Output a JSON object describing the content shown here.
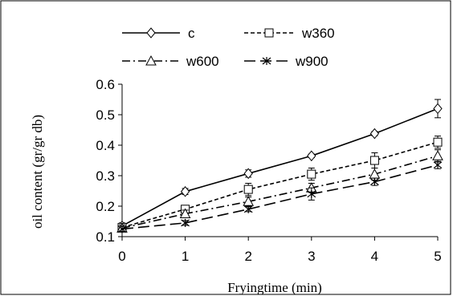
{
  "chart_data": {
    "type": "line",
    "title": "",
    "xlabel": "Fryingtime (min)",
    "ylabel": "oil content (gr/gr db)",
    "x": [
      0,
      1,
      2,
      3,
      4,
      5
    ],
    "xlim": [
      0,
      5
    ],
    "ylim": [
      0.1,
      0.6
    ],
    "yticks": [
      "0.1",
      "0.2",
      "0.3",
      "0.4",
      "0.5",
      "0.6"
    ],
    "xticks": [
      "0",
      "1",
      "2",
      "3",
      "4",
      "5"
    ],
    "grid": false,
    "legend_position": "top",
    "series": [
      {
        "name": "c",
        "values": [
          0.135,
          0.248,
          0.307,
          0.365,
          0.438,
          0.52
        ],
        "errors": [
          0.01,
          0.01,
          0.012,
          0.006,
          0.007,
          0.03
        ],
        "marker": "diamond",
        "dash": "solid"
      },
      {
        "name": "w360",
        "values": [
          0.13,
          0.19,
          0.255,
          0.305,
          0.35,
          0.41
        ],
        "errors": [
          0.01,
          0.012,
          0.02,
          0.02,
          0.025,
          0.02
        ],
        "marker": "square",
        "dash": "dashed"
      },
      {
        "name": "w600",
        "values": [
          0.128,
          0.175,
          0.215,
          0.26,
          0.305,
          0.365
        ],
        "errors": [
          0.01,
          0.012,
          0.015,
          0.015,
          0.02,
          0.02
        ],
        "marker": "triangle",
        "dash": "dashdot"
      },
      {
        "name": "w900",
        "values": [
          0.125,
          0.145,
          0.19,
          0.24,
          0.28,
          0.335
        ],
        "errors": [
          0.008,
          0.008,
          0.008,
          0.02,
          0.012,
          0.012
        ],
        "marker": "x",
        "dash": "longdash"
      }
    ],
    "colors": {
      "line": "#000000",
      "border": "#000000",
      "background": "#ffffff"
    }
  }
}
